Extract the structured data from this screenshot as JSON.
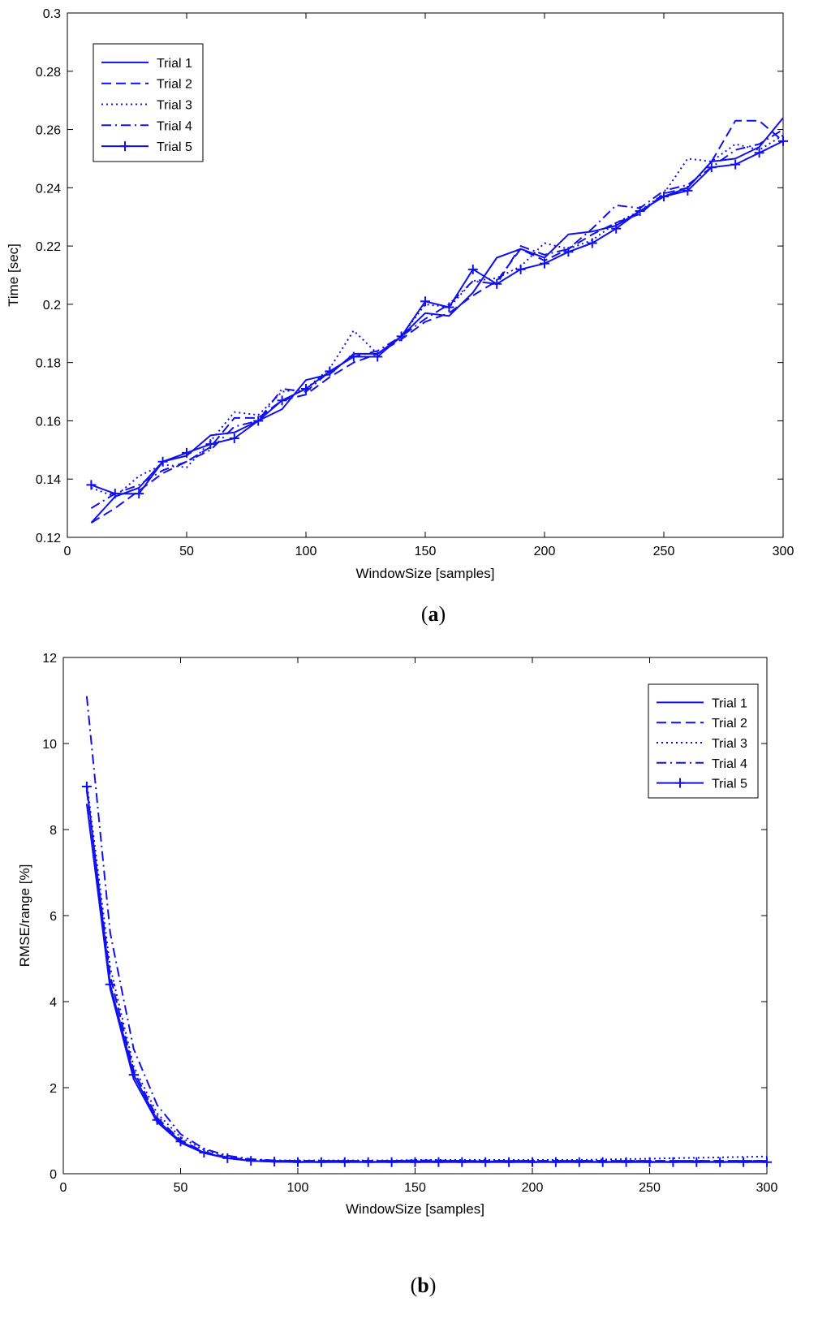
{
  "colors": {
    "series": "#1010ee",
    "axis": "#000000",
    "background": "#ffffff"
  },
  "chart_data": [
    {
      "type": "line",
      "panel_label": "a",
      "xlabel": "WindowSize [samples]",
      "ylabel": "Time [sec]",
      "xlim": [
        0,
        300
      ],
      "ylim": [
        0.12,
        0.3
      ],
      "xticks": [
        0,
        50,
        100,
        150,
        200,
        250,
        300
      ],
      "yticks": [
        0.12,
        0.14,
        0.16,
        0.18,
        0.2,
        0.22,
        0.24,
        0.26,
        0.28,
        0.3
      ],
      "ytick_labels": [
        "0.12",
        "0.14",
        "0.16",
        "0.18",
        "0.2",
        "0.22",
        "0.24",
        "0.26",
        "0.28",
        "0.3"
      ],
      "legend_position": "top-left",
      "x": [
        10,
        20,
        30,
        40,
        50,
        60,
        70,
        80,
        90,
        100,
        110,
        120,
        130,
        140,
        150,
        160,
        170,
        180,
        190,
        200,
        210,
        220,
        230,
        240,
        250,
        260,
        270,
        280,
        290,
        300
      ],
      "series": [
        {
          "name": "Trial 1",
          "style": "solid",
          "marker": "none",
          "values": [
            0.125,
            0.134,
            0.137,
            0.146,
            0.148,
            0.155,
            0.156,
            0.16,
            0.164,
            0.174,
            0.176,
            0.183,
            0.183,
            0.189,
            0.197,
            0.196,
            0.204,
            0.216,
            0.219,
            0.216,
            0.224,
            0.225,
            0.227,
            0.232,
            0.237,
            0.24,
            0.249,
            0.25,
            0.254,
            0.264
          ]
        },
        {
          "name": "Trial 2",
          "style": "dashed",
          "marker": "none",
          "values": [
            0.125,
            0.13,
            0.136,
            0.142,
            0.146,
            0.151,
            0.161,
            0.161,
            0.167,
            0.169,
            0.175,
            0.18,
            0.183,
            0.188,
            0.194,
            0.197,
            0.203,
            0.208,
            0.219,
            0.215,
            0.219,
            0.224,
            0.228,
            0.231,
            0.238,
            0.24,
            0.249,
            0.263,
            0.263,
            0.256
          ]
        },
        {
          "name": "Trial 3",
          "style": "dotted",
          "marker": "none",
          "values": [
            0.137,
            0.134,
            0.141,
            0.145,
            0.144,
            0.153,
            0.163,
            0.162,
            0.17,
            0.171,
            0.178,
            0.191,
            0.183,
            0.189,
            0.2,
            0.199,
            0.208,
            0.209,
            0.213,
            0.221,
            0.219,
            0.222,
            0.228,
            0.232,
            0.238,
            0.25,
            0.249,
            0.255,
            0.253,
            0.258
          ]
        },
        {
          "name": "Trial 4",
          "style": "dashdot",
          "marker": "none",
          "values": [
            0.13,
            0.135,
            0.138,
            0.143,
            0.146,
            0.15,
            0.158,
            0.16,
            0.171,
            0.17,
            0.177,
            0.182,
            0.184,
            0.189,
            0.195,
            0.2,
            0.208,
            0.207,
            0.22,
            0.217,
            0.219,
            0.226,
            0.234,
            0.233,
            0.239,
            0.241,
            0.247,
            0.253,
            0.255,
            0.26
          ]
        },
        {
          "name": "Trial 5",
          "style": "solid",
          "marker": "plus",
          "values": [
            0.138,
            0.135,
            0.135,
            0.146,
            0.149,
            0.152,
            0.154,
            0.16,
            0.167,
            0.171,
            0.177,
            0.182,
            0.182,
            0.189,
            0.201,
            0.199,
            0.212,
            0.207,
            0.212,
            0.214,
            0.218,
            0.221,
            0.226,
            0.232,
            0.237,
            0.239,
            0.247,
            0.248,
            0.252,
            0.256
          ]
        }
      ]
    },
    {
      "type": "line",
      "panel_label": "b",
      "xlabel": "WindowSize [samples]",
      "ylabel": "RMSE/range [%]",
      "xlim": [
        0,
        300
      ],
      "ylim": [
        0,
        12
      ],
      "xticks": [
        0,
        50,
        100,
        150,
        200,
        250,
        300
      ],
      "yticks": [
        0,
        2,
        4,
        6,
        8,
        10,
        12
      ],
      "ytick_labels": [
        "0",
        "2",
        "4",
        "6",
        "8",
        "10",
        "12"
      ],
      "legend_position": "top-right",
      "x": [
        10,
        20,
        30,
        40,
        50,
        60,
        70,
        80,
        90,
        100,
        110,
        120,
        130,
        140,
        150,
        160,
        170,
        180,
        190,
        200,
        210,
        220,
        230,
        240,
        250,
        260,
        270,
        280,
        290,
        300
      ],
      "series": [
        {
          "name": "Trial 1",
          "style": "solid",
          "marker": "none",
          "values": [
            8.6,
            4.3,
            2.2,
            1.2,
            0.72,
            0.48,
            0.36,
            0.3,
            0.28,
            0.28,
            0.28,
            0.28,
            0.28,
            0.28,
            0.29,
            0.29,
            0.29,
            0.29,
            0.28,
            0.28,
            0.28,
            0.28,
            0.28,
            0.28,
            0.28,
            0.28,
            0.28,
            0.28,
            0.28,
            0.28
          ]
        },
        {
          "name": "Trial 2",
          "style": "dashed",
          "marker": "none",
          "values": [
            8.9,
            4.6,
            2.4,
            1.3,
            0.78,
            0.51,
            0.38,
            0.32,
            0.3,
            0.3,
            0.3,
            0.3,
            0.3,
            0.3,
            0.31,
            0.31,
            0.3,
            0.3,
            0.3,
            0.3,
            0.3,
            0.3,
            0.3,
            0.3,
            0.3,
            0.3,
            0.3,
            0.3,
            0.3,
            0.3
          ]
        },
        {
          "name": "Trial 3",
          "style": "dotted",
          "marker": "none",
          "values": [
            9.1,
            4.8,
            2.5,
            1.4,
            0.85,
            0.55,
            0.4,
            0.33,
            0.31,
            0.31,
            0.31,
            0.31,
            0.31,
            0.31,
            0.32,
            0.32,
            0.32,
            0.32,
            0.32,
            0.32,
            0.32,
            0.32,
            0.33,
            0.34,
            0.35,
            0.36,
            0.37,
            0.38,
            0.39,
            0.4
          ]
        },
        {
          "name": "Trial 4",
          "style": "dashdot",
          "marker": "none",
          "values": [
            11.1,
            5.6,
            2.9,
            1.6,
            0.92,
            0.58,
            0.42,
            0.34,
            0.31,
            0.3,
            0.3,
            0.3,
            0.3,
            0.3,
            0.3,
            0.3,
            0.3,
            0.3,
            0.3,
            0.3,
            0.3,
            0.3,
            0.3,
            0.3,
            0.3,
            0.3,
            0.3,
            0.3,
            0.3,
            0.3
          ]
        },
        {
          "name": "Trial 5",
          "style": "solid",
          "marker": "plus",
          "values": [
            9.0,
            4.4,
            2.3,
            1.25,
            0.75,
            0.49,
            0.36,
            0.3,
            0.28,
            0.27,
            0.27,
            0.27,
            0.27,
            0.27,
            0.27,
            0.27,
            0.27,
            0.27,
            0.27,
            0.27,
            0.27,
            0.27,
            0.27,
            0.27,
            0.27,
            0.27,
            0.27,
            0.27,
            0.27,
            0.27
          ]
        }
      ]
    }
  ]
}
